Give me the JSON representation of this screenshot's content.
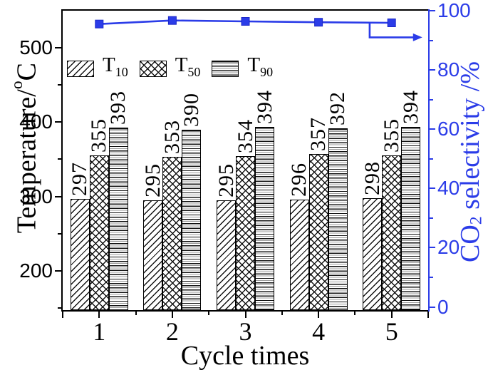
{
  "figure": {
    "background": "#ffffff",
    "accent_blue": "#2b3ce8",
    "axis_black": "#000000"
  },
  "chart_data": {
    "type": "bar",
    "title": "",
    "categories": [
      "1",
      "2",
      "3",
      "4",
      "5"
    ],
    "xlabel": "Cycle times",
    "left_axis": {
      "title_pre": "Temperature/",
      "title_sup": "o",
      "title_post": "C",
      "min": 147,
      "max": 550,
      "major_ticks": [
        "200",
        "300",
        "400",
        "500"
      ],
      "major_values": [
        200,
        300,
        400,
        500
      ],
      "minor_values": [
        150,
        250,
        350,
        450
      ]
    },
    "right_axis": {
      "title_pre": "CO",
      "title_sub": "2",
      "title_post": " selectivity /%",
      "min": 0,
      "max": 100,
      "major_ticks": [
        "0",
        "20",
        "40",
        "60",
        "80",
        "100"
      ],
      "major_values": [
        0,
        20,
        40,
        60,
        80,
        100
      ],
      "minor_values": [
        10,
        30,
        50,
        70,
        90
      ]
    },
    "series": [
      {
        "name": "T",
        "sub": "10",
        "pattern": "diagonal-hatch",
        "values": [
          297,
          295,
          295,
          296,
          298
        ]
      },
      {
        "name": "T",
        "sub": "50",
        "pattern": "cross-hatch",
        "values": [
          355,
          353,
          354,
          357,
          355
        ]
      },
      {
        "name": "T",
        "sub": "90",
        "pattern": "horizontal-lines",
        "values": [
          393,
          390,
          394,
          392,
          394
        ]
      }
    ],
    "line_series": {
      "name": "CO2 selectivity",
      "axis": "right",
      "x": [
        1,
        2,
        3,
        4,
        5
      ],
      "values": [
        95.5,
        96.7,
        96.4,
        96.1,
        95.9
      ],
      "marker": "square"
    },
    "annotation_arrow": {
      "branch_x": 4.7,
      "elbow_value": 91,
      "tip_x": 5.42
    }
  }
}
